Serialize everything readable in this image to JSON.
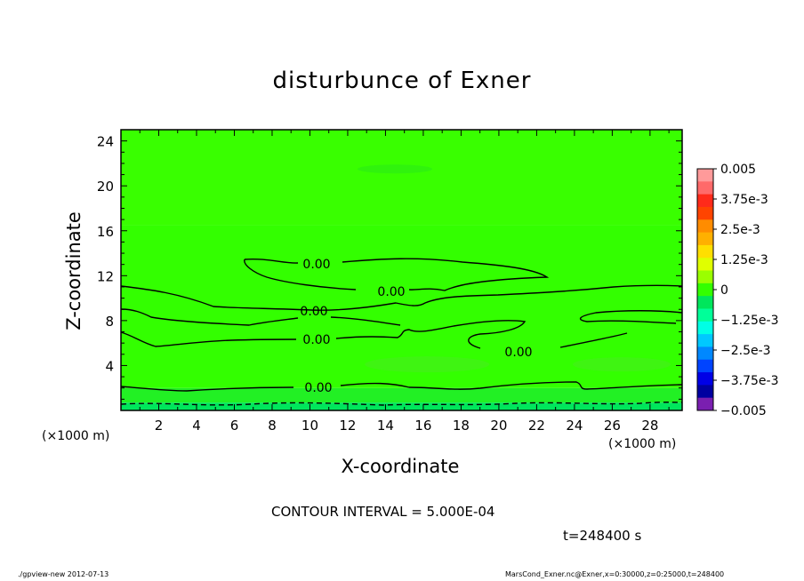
{
  "chart_data": {
    "type": "heatmap",
    "title": "disturbunce of Exner",
    "xlabel": "X-coordinate",
    "ylabel": "Z-coordinate",
    "x_unit": "(×1000 m)",
    "xlim": [
      0,
      29.7
    ],
    "ylim": [
      0,
      25
    ],
    "x_ticks": [
      2,
      4,
      6,
      8,
      10,
      12,
      14,
      16,
      18,
      20,
      22,
      24,
      26,
      28
    ],
    "y_ticks": [
      4,
      8,
      12,
      16,
      20,
      24
    ],
    "contour_interval_text": "CONTOUR INTERVAL = 5.000E-04",
    "contour_labels": [
      "0.00",
      "0.00",
      "0.00",
      "0.00",
      "0.00",
      "0.00"
    ],
    "colorbar": {
      "labels": [
        "0.005",
        "3.75e-3",
        "2.5e-3",
        "1.25e-3",
        "0",
        "−1.25e-3",
        "−2.5e-3",
        "−3.75e-3",
        "−0.005"
      ],
      "colors": [
        "#ff9a9a",
        "#ff6a6a",
        "#ff2a1a",
        "#ff4400",
        "#ff8c00",
        "#ffb000",
        "#ffdf00",
        "#e0ff00",
        "#9aff00",
        "#33ff00",
        "#00e65c",
        "#00ff99",
        "#00ffe6",
        "#00c8ff",
        "#0088ff",
        "#0044ff",
        "#0000e6",
        "#0000a0",
        "#7a1fb0"
      ]
    },
    "bands": [
      {
        "z": [
          0,
          0.7
        ],
        "color": "#00e65c"
      },
      {
        "z": [
          0.7,
          2.0
        ],
        "color": "#22f024"
      },
      {
        "z": [
          2.0,
          16.5
        ],
        "color": "#33ff00"
      },
      {
        "z": [
          16.5,
          25
        ],
        "color": "#39ff00"
      }
    ]
  },
  "time_label": "t=248400 s",
  "footer": {
    "left": "./gpview-new   2012-07-13",
    "right": "MarsCond_Exner.nc@Exner,x=0:30000,z=0:25000,t=248400"
  }
}
